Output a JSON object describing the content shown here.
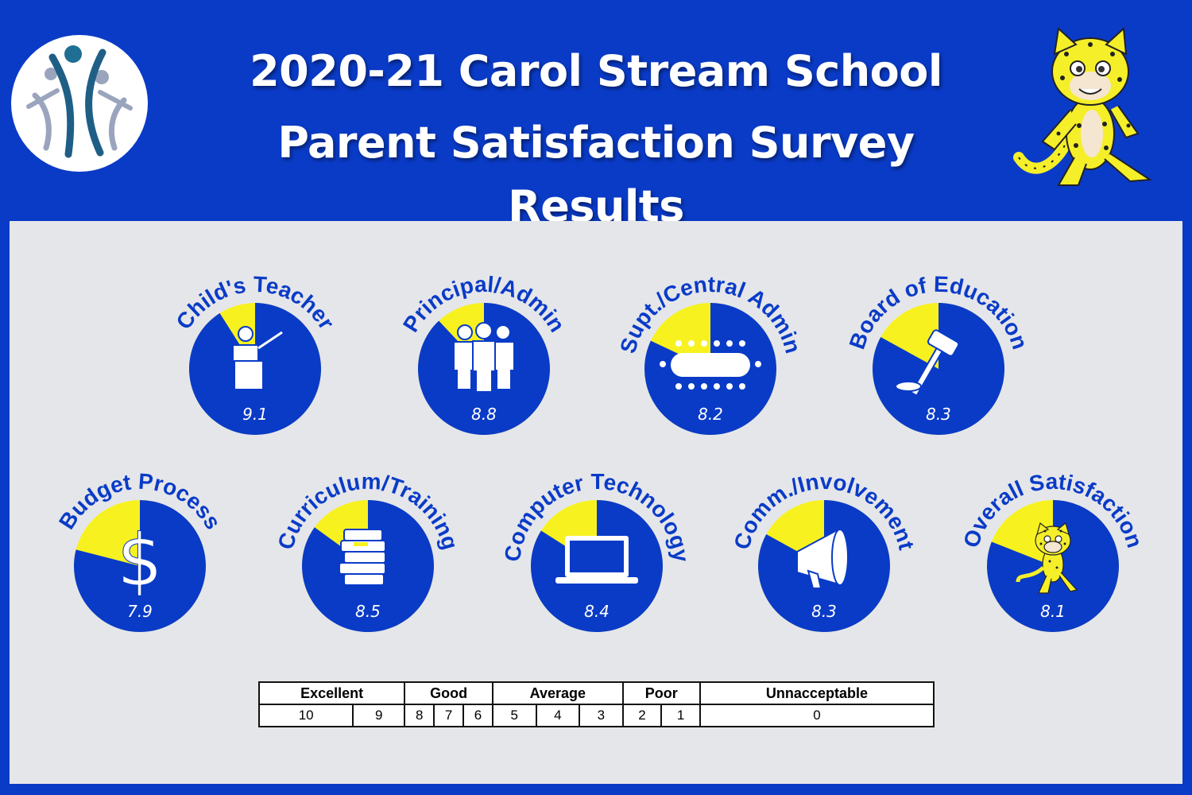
{
  "header": {
    "title_line1": "2020-21 Carol Stream School",
    "title_line2": "Parent Satisfaction Survey Results",
    "logo_icon": "district-logo-people-icon",
    "mascot_icon": "leopard-mascot-icon"
  },
  "colors": {
    "background": "#0a3bc7",
    "panel": "#e5e6ea",
    "fill": "#0a3bc7",
    "remainder": "#f7f21f",
    "text": "#ffffff"
  },
  "chart_data": {
    "type": "pie",
    "scale_max": 10,
    "categories": [
      "Child's Teacher",
      "Principal/Admin",
      "Supt./Central Admin",
      "Board of Education",
      "Budget Process",
      "Curriculum/Training",
      "Computer Technology",
      "Comm./Involvement",
      "Overall Satisfaction"
    ],
    "values": [
      9.1,
      8.8,
      8.2,
      8.3,
      7.9,
      8.5,
      8.4,
      8.3,
      8.1
    ],
    "value_labels": [
      "9.1",
      "8.8",
      "8.2",
      "8.3",
      "7.9",
      "8.5",
      "8.4",
      "8.3",
      "8.1"
    ],
    "icons": [
      "teacher-at-podium-icon",
      "staff-group-icon",
      "conference-table-icon",
      "gavel-icon",
      "dollar-sign-icon",
      "stack-of-books-icon",
      "laptop-icon",
      "megaphone-icon",
      "leopard-mascot-icon"
    ]
  },
  "scale": {
    "groups": [
      {
        "label": "Excellent",
        "values": [
          "10",
          "9"
        ]
      },
      {
        "label": "Good",
        "values": [
          "8",
          "7",
          "6"
        ]
      },
      {
        "label": "Average",
        "values": [
          "5",
          "4",
          "3"
        ]
      },
      {
        "label": "Poor",
        "values": [
          "2",
          "1"
        ]
      },
      {
        "label": "Unnacceptable",
        "values": [
          "0"
        ]
      }
    ]
  }
}
